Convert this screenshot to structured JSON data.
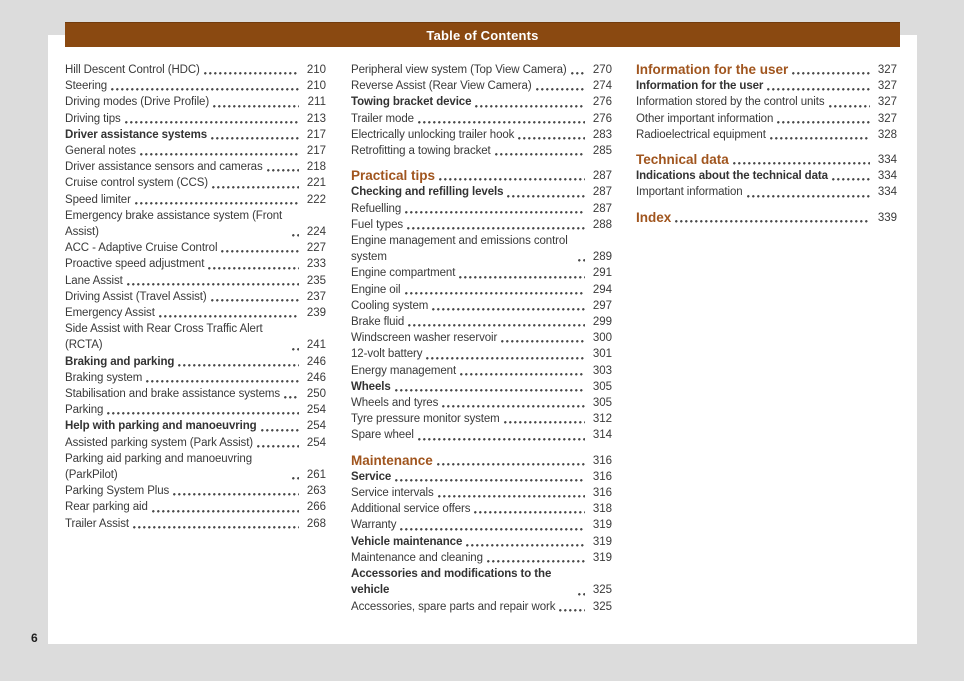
{
  "page": {
    "title": "Table of Contents",
    "page_number": "6"
  },
  "colors": {
    "background": "#dcdcdc",
    "paper": "#ffffff",
    "header_bar": "#8a4911",
    "header_text": "#ffffff",
    "section_heading": "#a0551e",
    "body_text": "#3a3a3a"
  },
  "columns": [
    {
      "name": "left",
      "entries": [
        {
          "label": "Hill Descent Control (HDC)",
          "page": "210",
          "style": "normal"
        },
        {
          "label": "Steering",
          "page": "210",
          "style": "normal"
        },
        {
          "label": "Driving modes (Drive Profile)",
          "page": "211",
          "style": "normal"
        },
        {
          "label": "Driving tips",
          "page": "213",
          "style": "normal"
        },
        {
          "label": "Driver assistance systems",
          "page": "217",
          "style": "bold"
        },
        {
          "label": "General notes",
          "page": "217",
          "style": "normal"
        },
        {
          "label": "Driver assistance sensors and cameras",
          "page": "218",
          "style": "normal"
        },
        {
          "label": "Cruise control system (CCS)",
          "page": "221",
          "style": "normal"
        },
        {
          "label": "Speed limiter",
          "page": "222",
          "style": "normal"
        },
        {
          "label": "Emergency brake assistance system (Front Assist)",
          "page": "224",
          "style": "normal"
        },
        {
          "label": "ACC - Adaptive Cruise Control",
          "page": "227",
          "style": "normal"
        },
        {
          "label": "Proactive speed adjustment",
          "page": "233",
          "style": "normal"
        },
        {
          "label": "Lane Assist",
          "page": "235",
          "style": "normal"
        },
        {
          "label": "Driving Assist (Travel Assist)",
          "page": "237",
          "style": "normal"
        },
        {
          "label": "Emergency Assist",
          "page": "239",
          "style": "normal"
        },
        {
          "label": "Side Assist with Rear Cross Traffic Alert (RCTA)",
          "page": "241",
          "style": "normal"
        },
        {
          "label": "Braking and parking",
          "page": "246",
          "style": "bold"
        },
        {
          "label": "Braking system",
          "page": "246",
          "style": "normal"
        },
        {
          "label": "Stabilisation and brake assistance systems",
          "page": "250",
          "style": "normal"
        },
        {
          "label": "Parking",
          "page": "254",
          "style": "normal"
        },
        {
          "label": "Help with parking and manoeuvring",
          "page": "254",
          "style": "bold"
        },
        {
          "label": "Assisted parking system (Park Assist)",
          "page": "254",
          "style": "normal"
        },
        {
          "label": "Parking aid parking and manoeuvring (ParkPilot)",
          "page": "261",
          "style": "normal"
        },
        {
          "label": "Parking System Plus",
          "page": "263",
          "style": "normal"
        },
        {
          "label": "Rear parking aid",
          "page": "266",
          "style": "normal"
        },
        {
          "label": "Trailer Assist",
          "page": "268",
          "style": "normal"
        }
      ]
    },
    {
      "name": "middle",
      "entries": [
        {
          "label": "Peripheral view system (Top View Camera)",
          "page": "270",
          "style": "normal"
        },
        {
          "label": "Reverse Assist (Rear View Camera)",
          "page": "274",
          "style": "normal"
        },
        {
          "label": "Towing bracket device",
          "page": "276",
          "style": "bold"
        },
        {
          "label": "Trailer mode",
          "page": "276",
          "style": "normal"
        },
        {
          "label": "Electrically unlocking trailer hook",
          "page": "283",
          "style": "normal"
        },
        {
          "label": "Retrofitting a towing bracket",
          "page": "285",
          "style": "normal"
        },
        {
          "label": "Practical tips",
          "page": "287",
          "style": "heading",
          "gap": true
        },
        {
          "label": "Checking and refilling levels",
          "page": "287",
          "style": "bold"
        },
        {
          "label": "Refuelling",
          "page": "287",
          "style": "normal"
        },
        {
          "label": "Fuel types",
          "page": "288",
          "style": "normal"
        },
        {
          "label": "Engine management and emissions control system",
          "page": "289",
          "style": "normal"
        },
        {
          "label": "Engine compartment",
          "page": "291",
          "style": "normal"
        },
        {
          "label": "Engine oil",
          "page": "294",
          "style": "normal"
        },
        {
          "label": "Cooling system",
          "page": "297",
          "style": "normal"
        },
        {
          "label": "Brake fluid",
          "page": "299",
          "style": "normal"
        },
        {
          "label": "Windscreen washer reservoir",
          "page": "300",
          "style": "normal"
        },
        {
          "label": "12-volt battery",
          "page": "301",
          "style": "normal"
        },
        {
          "label": "Energy management",
          "page": "303",
          "style": "normal"
        },
        {
          "label": "Wheels",
          "page": "305",
          "style": "bold"
        },
        {
          "label": "Wheels and tyres",
          "page": "305",
          "style": "normal"
        },
        {
          "label": "Tyre pressure monitor system",
          "page": "312",
          "style": "normal"
        },
        {
          "label": "Spare wheel",
          "page": "314",
          "style": "normal"
        },
        {
          "label": "Maintenance",
          "page": "316",
          "style": "heading",
          "gap": true
        },
        {
          "label": "Service",
          "page": "316",
          "style": "bold"
        },
        {
          "label": "Service intervals",
          "page": "316",
          "style": "normal"
        },
        {
          "label": "Additional service offers",
          "page": "318",
          "style": "normal"
        },
        {
          "label": "Warranty",
          "page": "319",
          "style": "normal"
        },
        {
          "label": "Vehicle maintenance",
          "page": "319",
          "style": "bold"
        },
        {
          "label": "Maintenance and cleaning",
          "page": "319",
          "style": "normal"
        },
        {
          "label": "Accessories and modifications to the vehicle",
          "page": "325",
          "style": "bold"
        },
        {
          "label": "Accessories, spare parts and repair work",
          "page": "325",
          "style": "normal"
        }
      ]
    },
    {
      "name": "right",
      "entries": [
        {
          "label": "Information for the user",
          "page": "327",
          "style": "heading"
        },
        {
          "label": "Information for the user",
          "page": "327",
          "style": "bold"
        },
        {
          "label": "Information stored by the control units",
          "page": "327",
          "style": "normal"
        },
        {
          "label": "Other important information",
          "page": "327",
          "style": "normal"
        },
        {
          "label": "Radioelectrical equipment",
          "page": "328",
          "style": "normal"
        },
        {
          "label": "Technical data",
          "page": "334",
          "style": "heading",
          "gap": true
        },
        {
          "label": "Indications about the technical data",
          "page": "334",
          "style": "bold"
        },
        {
          "label": "Important information",
          "page": "334",
          "style": "normal"
        },
        {
          "label": "Index",
          "page": "339",
          "style": "heading",
          "gap": true
        }
      ]
    }
  ]
}
